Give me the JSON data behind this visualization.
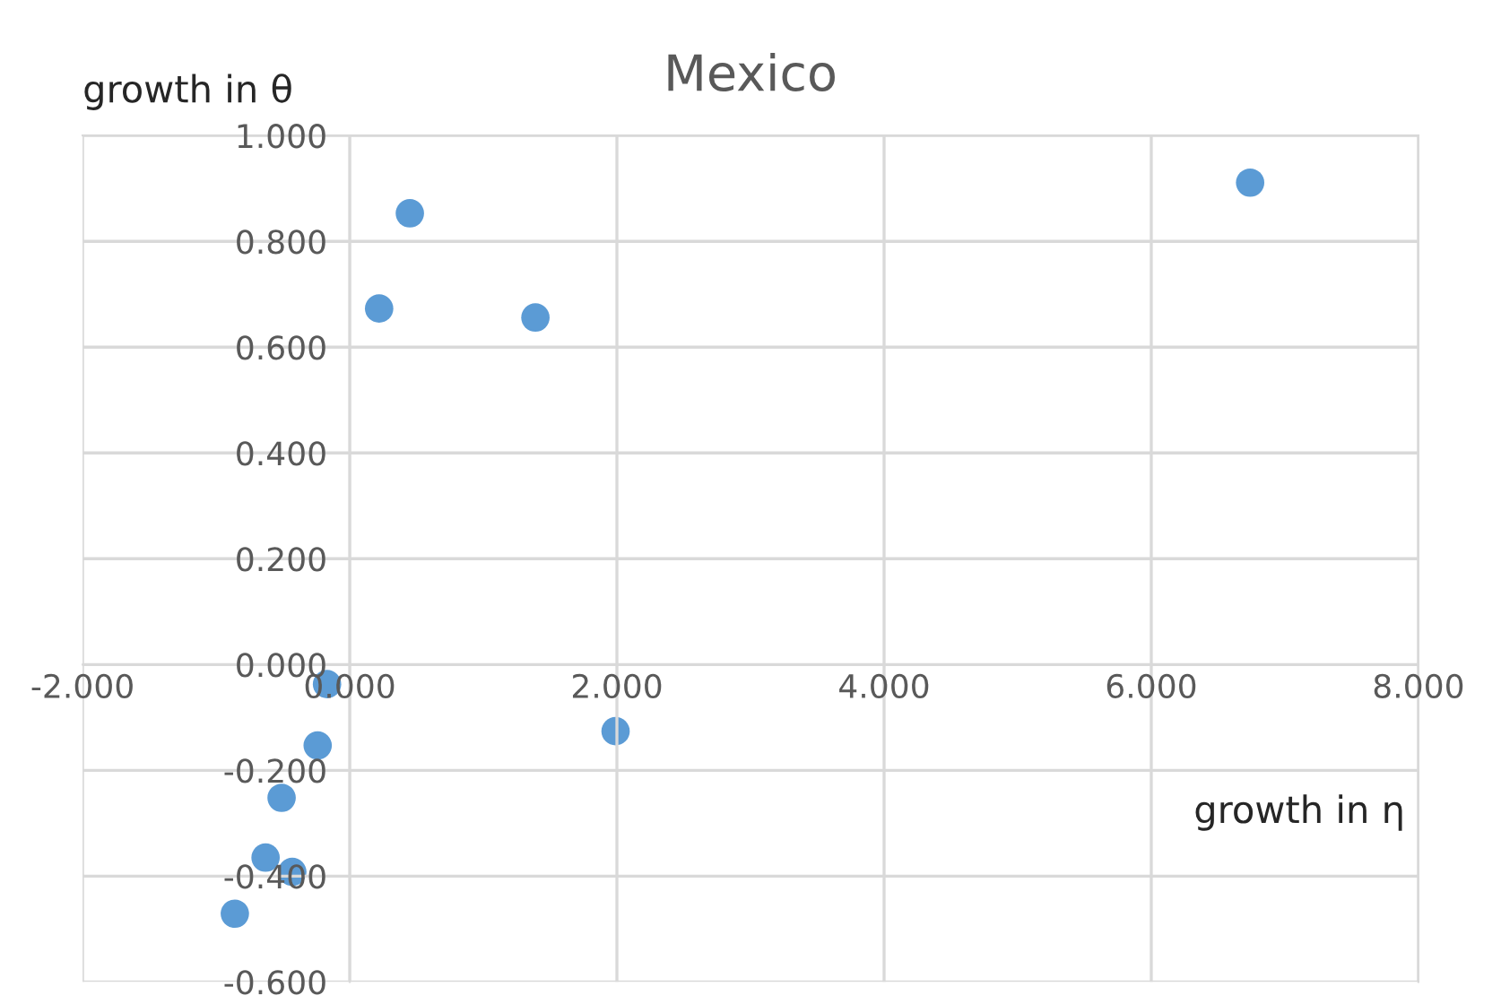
{
  "chart_data": {
    "type": "scatter",
    "title": "Mexico",
    "xlabel": "growth in η",
    "ylabel": "growth in θ",
    "x": [
      6.74,
      0.22,
      0.45,
      1.39,
      1.99,
      -0.17,
      -0.24,
      -0.51,
      -0.63,
      -0.43,
      -0.86
    ],
    "series": [
      {
        "color": "#5b9bd5",
        "values": [
          0.911,
          0.673,
          0.853,
          0.656,
          -0.126,
          -0.037,
          -0.153,
          -0.252,
          -0.365,
          -0.392,
          -0.471
        ]
      }
    ],
    "xlim": [
      -2,
      8
    ],
    "ylim": [
      -0.6,
      1.0
    ],
    "xticks": [
      {
        "value": -2,
        "label": "-2.000"
      },
      {
        "value": 0,
        "label": "0.000"
      },
      {
        "value": 2,
        "label": "2.000"
      },
      {
        "value": 4,
        "label": "4.000"
      },
      {
        "value": 6,
        "label": "6.000"
      },
      {
        "value": 8,
        "label": "8.000"
      }
    ],
    "yticks": [
      {
        "value": -0.6,
        "label": "-0.600"
      },
      {
        "value": -0.4,
        "label": "-0.400"
      },
      {
        "value": -0.2,
        "label": "-0.200"
      },
      {
        "value": 0,
        "label": "0.000"
      },
      {
        "value": 0.2,
        "label": "0.200"
      },
      {
        "value": 0.4,
        "label": "0.400"
      },
      {
        "value": 0.6,
        "label": "0.600"
      },
      {
        "value": 0.8,
        "label": "0.800"
      },
      {
        "value": 1.0,
        "label": "1.000"
      }
    ],
    "grid": true,
    "marker": "circle",
    "legend": false
  }
}
